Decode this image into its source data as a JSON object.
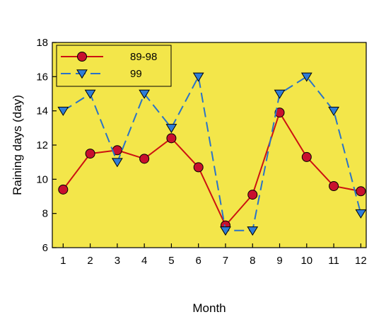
{
  "chart_data": {
    "type": "line",
    "title": "",
    "xlabel": "Month",
    "ylabel": "Raining days (day)",
    "x": [
      1,
      2,
      3,
      4,
      5,
      6,
      7,
      8,
      9,
      10,
      11,
      12
    ],
    "xticks": [
      "1",
      "2",
      "3",
      "4",
      "5",
      "6",
      "7",
      "8",
      "9",
      "10",
      "11",
      "12"
    ],
    "ylim": [
      6,
      18
    ],
    "yticks": [
      "6",
      "8",
      "10",
      "12",
      "14",
      "16",
      "18"
    ],
    "grid": false,
    "legend_position": "top-left",
    "plot_background": "#f3e64a",
    "series": [
      {
        "name": "89-98",
        "marker": "circle",
        "line_style": "solid",
        "color": "#cc1111",
        "marker_fill": "#c8102e",
        "values": [
          9.4,
          11.5,
          11.7,
          11.2,
          12.4,
          10.7,
          7.3,
          9.1,
          13.9,
          11.3,
          9.6,
          9.3
        ]
      },
      {
        "name": "99",
        "marker": "triangle-down",
        "line_style": "dashed",
        "color": "#2a73c8",
        "marker_fill": "#2f7dd6",
        "values": [
          14,
          15,
          11,
          15,
          13,
          16,
          7,
          7,
          15,
          16,
          14,
          8
        ]
      }
    ]
  }
}
